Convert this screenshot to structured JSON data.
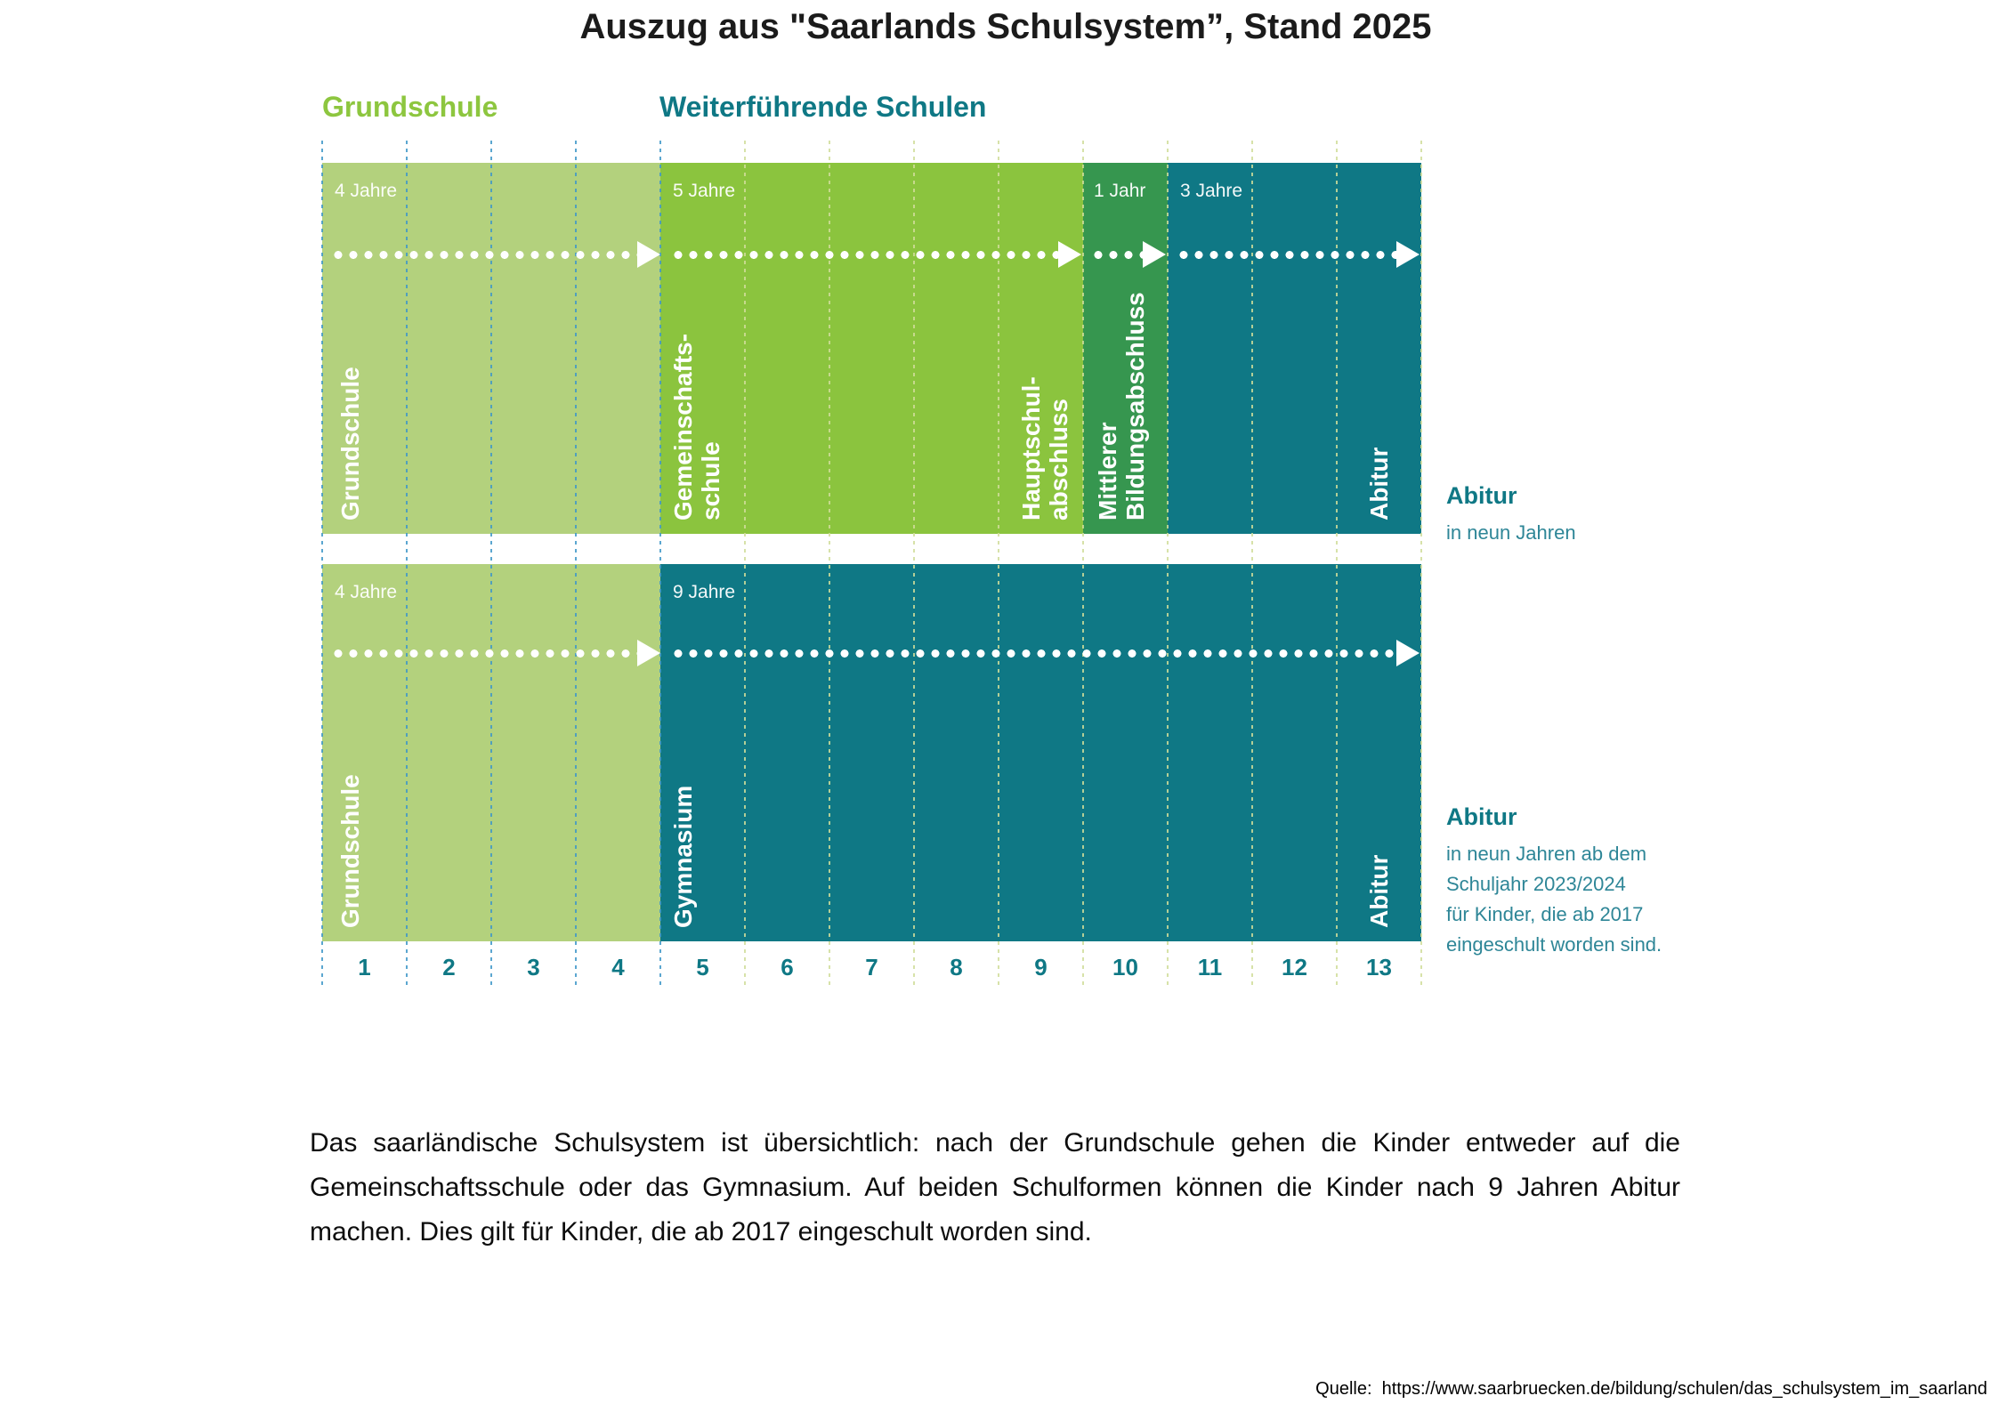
{
  "title": "Auszug aus \"Saarlands Schulsystem”, Stand 2025",
  "headers": {
    "primary": "Grundschule",
    "secondary": "Weiterführende Schulen"
  },
  "colors": {
    "light_green": "#B3D17D",
    "medium_green": "#8BC43E",
    "dark_green": "#36964F",
    "teal": "#0F7885",
    "header_green": "#8DC63F",
    "header_teal": "#0F7885",
    "grid_blue": "#3E97C8",
    "grid_yellow": "#D0DD9A",
    "axis_text": "#0F7885",
    "annotation_text": "#2E8697"
  },
  "top_track": {
    "sections": [
      {
        "duration": "4 Jahre",
        "label": "Grundschule",
        "years": 4
      },
      {
        "duration": "5 Jahre",
        "label": "Gemeinschafts-\nschule",
        "end_label": "Hauptschul-\nabschluss",
        "years": 5
      },
      {
        "duration": "1 Jahr",
        "label": "Mittlerer\nBildungsabschluss",
        "years": 1
      },
      {
        "duration": "3 Jahre",
        "label": "Abitur",
        "years": 3
      }
    ],
    "annotation": {
      "title": "Abitur",
      "subtitle": "in neun Jahren"
    }
  },
  "bottom_track": {
    "sections": [
      {
        "duration": "4 Jahre",
        "label": "Grundschule",
        "years": 4
      },
      {
        "duration": "9 Jahre",
        "label": "Gymnasium",
        "end_label": "Abitur",
        "years": 9
      }
    ],
    "annotation": {
      "title": "Abitur",
      "subtitle": "in neun Jahren ab dem\nSchuljahr 2023/2024\nfür Kinder, die ab 2017\neingeschult worden sind."
    }
  },
  "axis": {
    "years": [
      "1",
      "2",
      "3",
      "4",
      "5",
      "6",
      "7",
      "8",
      "9",
      "10",
      "11",
      "12",
      "13"
    ]
  },
  "paragraph": "Das saarländische Schulsystem ist übersichtlich: nach der Grundschule gehen die Kinder entweder auf die Gemeinschaftsschule oder das Gymnasium. Auf beiden Schulformen können die Kinder nach 9 Jahren Abitur machen. Dies gilt für Kinder, die ab 2017 eingeschult worden sind.",
  "source": "Quelle:  https://www.saarbruecken.de/bildung/schulen/das_schulsystem_im_saarland"
}
